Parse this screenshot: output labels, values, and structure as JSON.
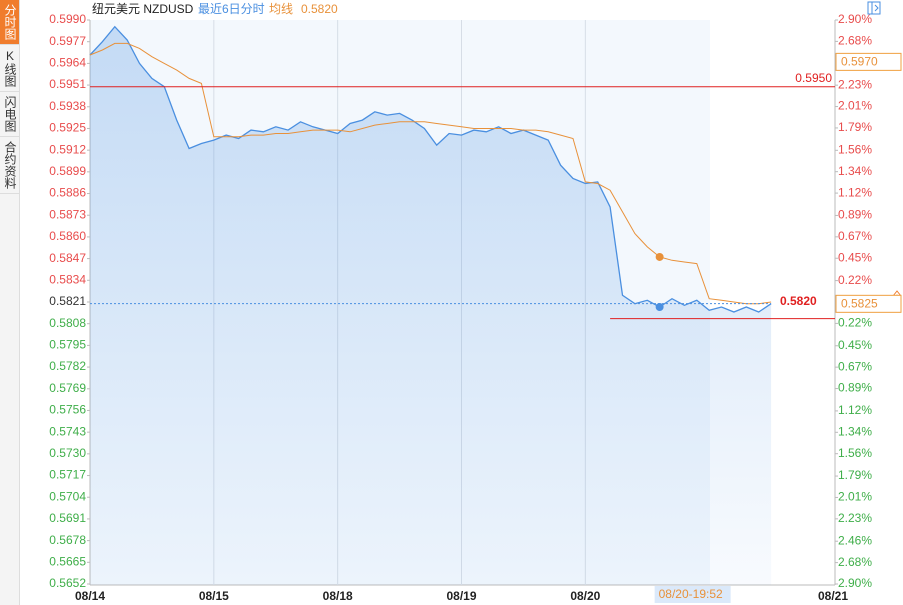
{
  "sidebar": {
    "tabs": [
      "分时图",
      "K线图",
      "闪电图",
      "合约资料"
    ]
  },
  "chart_data": {
    "type": "line",
    "title": "纽元美元 NZDUSD",
    "subtitle": "最近6日分时",
    "legend_value": "0.5820",
    "x": [
      0,
      0.1,
      0.2,
      0.3,
      0.4,
      0.5,
      0.6,
      0.7,
      0.8,
      0.9,
      1,
      1.1,
      1.2,
      1.3,
      1.4,
      1.5,
      1.6,
      1.7,
      1.8,
      1.9,
      2,
      2.1,
      2.2,
      2.3,
      2.4,
      2.5,
      2.6,
      2.7,
      2.8,
      2.9,
      3,
      3.1,
      3.2,
      3.3,
      3.4,
      3.5,
      3.6,
      3.7,
      3.8,
      3.9,
      4,
      4.1,
      4.2,
      4.3,
      4.4,
      4.5,
      4.6,
      4.7,
      4.8,
      4.9,
      5,
      5.1,
      5.2,
      5.3,
      5.4,
      5.5
    ],
    "series": [
      {
        "color": "#4a8fe0",
        "values": [
          0.5969,
          0.5977,
          0.5986,
          0.5978,
          0.5964,
          0.5955,
          0.595,
          0.593,
          0.5913,
          0.5916,
          0.5918,
          0.5921,
          0.5919,
          0.5924,
          0.5923,
          0.5926,
          0.5924,
          0.5929,
          0.5926,
          0.5924,
          0.5922,
          0.5928,
          0.593,
          0.5935,
          0.5933,
          0.5934,
          0.593,
          0.5925,
          0.5915,
          0.5922,
          0.5921,
          0.5924,
          0.5923,
          0.5926,
          0.5922,
          0.5924,
          0.5921,
          0.5918,
          0.5903,
          0.5895,
          0.5892,
          0.5893,
          0.5878,
          0.5825,
          0.582,
          0.5822,
          0.5818,
          0.5823,
          0.5819,
          0.5822,
          0.5816,
          0.5818,
          0.5815,
          0.5818,
          0.5815,
          0.582
        ]
      },
      {
        "name": "均线",
        "color": "#e8913a",
        "values": [
          0.5969,
          0.5972,
          0.5976,
          0.5976,
          0.5973,
          0.5968,
          0.5964,
          0.596,
          0.5955,
          0.5952,
          0.592,
          0.592,
          0.592,
          0.5921,
          0.5921,
          0.5922,
          0.5922,
          0.5923,
          0.5924,
          0.5924,
          0.5924,
          0.5923,
          0.5925,
          0.5927,
          0.5928,
          0.5929,
          0.5929,
          0.5929,
          0.5928,
          0.5927,
          0.5926,
          0.5925,
          0.5925,
          0.5925,
          0.5925,
          0.5924,
          0.5924,
          0.5923,
          0.5921,
          0.5919,
          0.5893,
          0.5892,
          0.5888,
          0.5875,
          0.5862,
          0.5854,
          0.5848,
          0.5846,
          0.5845,
          0.5844,
          0.5823,
          0.5822,
          0.5821,
          0.582,
          0.582,
          0.5821
        ]
      }
    ],
    "xlim": [
      0,
      6
    ],
    "xticks": [
      {
        "value": 0,
        "label": "08/14"
      },
      {
        "value": 1,
        "label": "08/15"
      },
      {
        "value": 2,
        "label": "08/18"
      },
      {
        "value": 3,
        "label": "08/19"
      },
      {
        "value": 4,
        "label": "08/20"
      },
      {
        "value": 6,
        "label": "08/21"
      }
    ],
    "ylim": [
      0.5652,
      0.599
    ],
    "yticks": [
      {
        "value": 0.599,
        "label": "0.5990"
      },
      0.5977,
      0.5964,
      0.5951,
      0.5938,
      0.5925,
      0.5912,
      0.5899,
      0.5886,
      0.5873,
      {
        "value": 0.586,
        "label": "0.5860"
      },
      0.5847,
      0.5834,
      0.5821,
      0.5808,
      0.5795,
      0.5782,
      0.5769,
      0.5756,
      0.5743,
      {
        "value": 0.573,
        "label": "0.5730"
      },
      0.5717,
      0.5704,
      0.5691,
      0.5678,
      0.5665,
      0.5652
    ],
    "y2lim": [
      -2.9,
      2.9
    ],
    "y2ticks": [
      {
        "value": 2.9,
        "label": "2.90%"
      },
      {
        "value": 2.68,
        "label": "2.68%"
      },
      {
        "value": 2.46,
        "label": "2.46%"
      },
      {
        "value": 2.23,
        "label": "2.23%"
      },
      {
        "value": 2.01,
        "label": "2.01%"
      },
      {
        "value": 1.79,
        "label": "1.79%"
      },
      {
        "value": 1.56,
        "label": "1.56%"
      },
      {
        "value": 1.34,
        "label": "1.34%"
      },
      {
        "value": 1.12,
        "label": "1.12%"
      },
      {
        "value": 0.89,
        "label": "0.89%"
      },
      {
        "value": 0.67,
        "label": "0.67%"
      },
      {
        "value": 0.45,
        "label": "0.45%"
      },
      {
        "value": 0.22,
        "label": "0.22%"
      },
      {
        "value": -0.22,
        "label": "0.22%"
      },
      {
        "value": -0.45,
        "label": "0.45%"
      },
      {
        "value": -0.67,
        "label": "0.67%"
      },
      {
        "value": -0.89,
        "label": "0.89%"
      },
      {
        "value": -1.12,
        "label": "1.12%"
      },
      {
        "value": -1.34,
        "label": "1.34%"
      },
      {
        "value": -1.56,
        "label": "1.56%"
      },
      {
        "value": -1.79,
        "label": "1.79%"
      },
      {
        "value": -2.01,
        "label": "2.01%"
      },
      {
        "value": -2.23,
        "label": "2.23%"
      },
      {
        "value": -2.46,
        "label": "2.46%"
      },
      {
        "value": -2.68,
        "label": "2.68%"
      },
      {
        "value": -2.9,
        "label": "2.90%"
      }
    ],
    "grid": "x",
    "up_color": "#e84c4c",
    "down_color": "#3fae49",
    "reference_line": {
      "value": 0.595,
      "label": "0.5950",
      "color": "#e02020"
    },
    "support_line": {
      "value": 0.5811,
      "from": 4.2,
      "color": "#e02020"
    },
    "last_price": {
      "value": 0.582,
      "label": "0.5820"
    },
    "price_boxes": [
      {
        "value": 0.597,
        "label": "0.5970"
      },
      {
        "value": 0.5825,
        "label": "0.5825"
      }
    ],
    "cursor": {
      "x": 4.6,
      "label": "08/20-19:52"
    }
  }
}
